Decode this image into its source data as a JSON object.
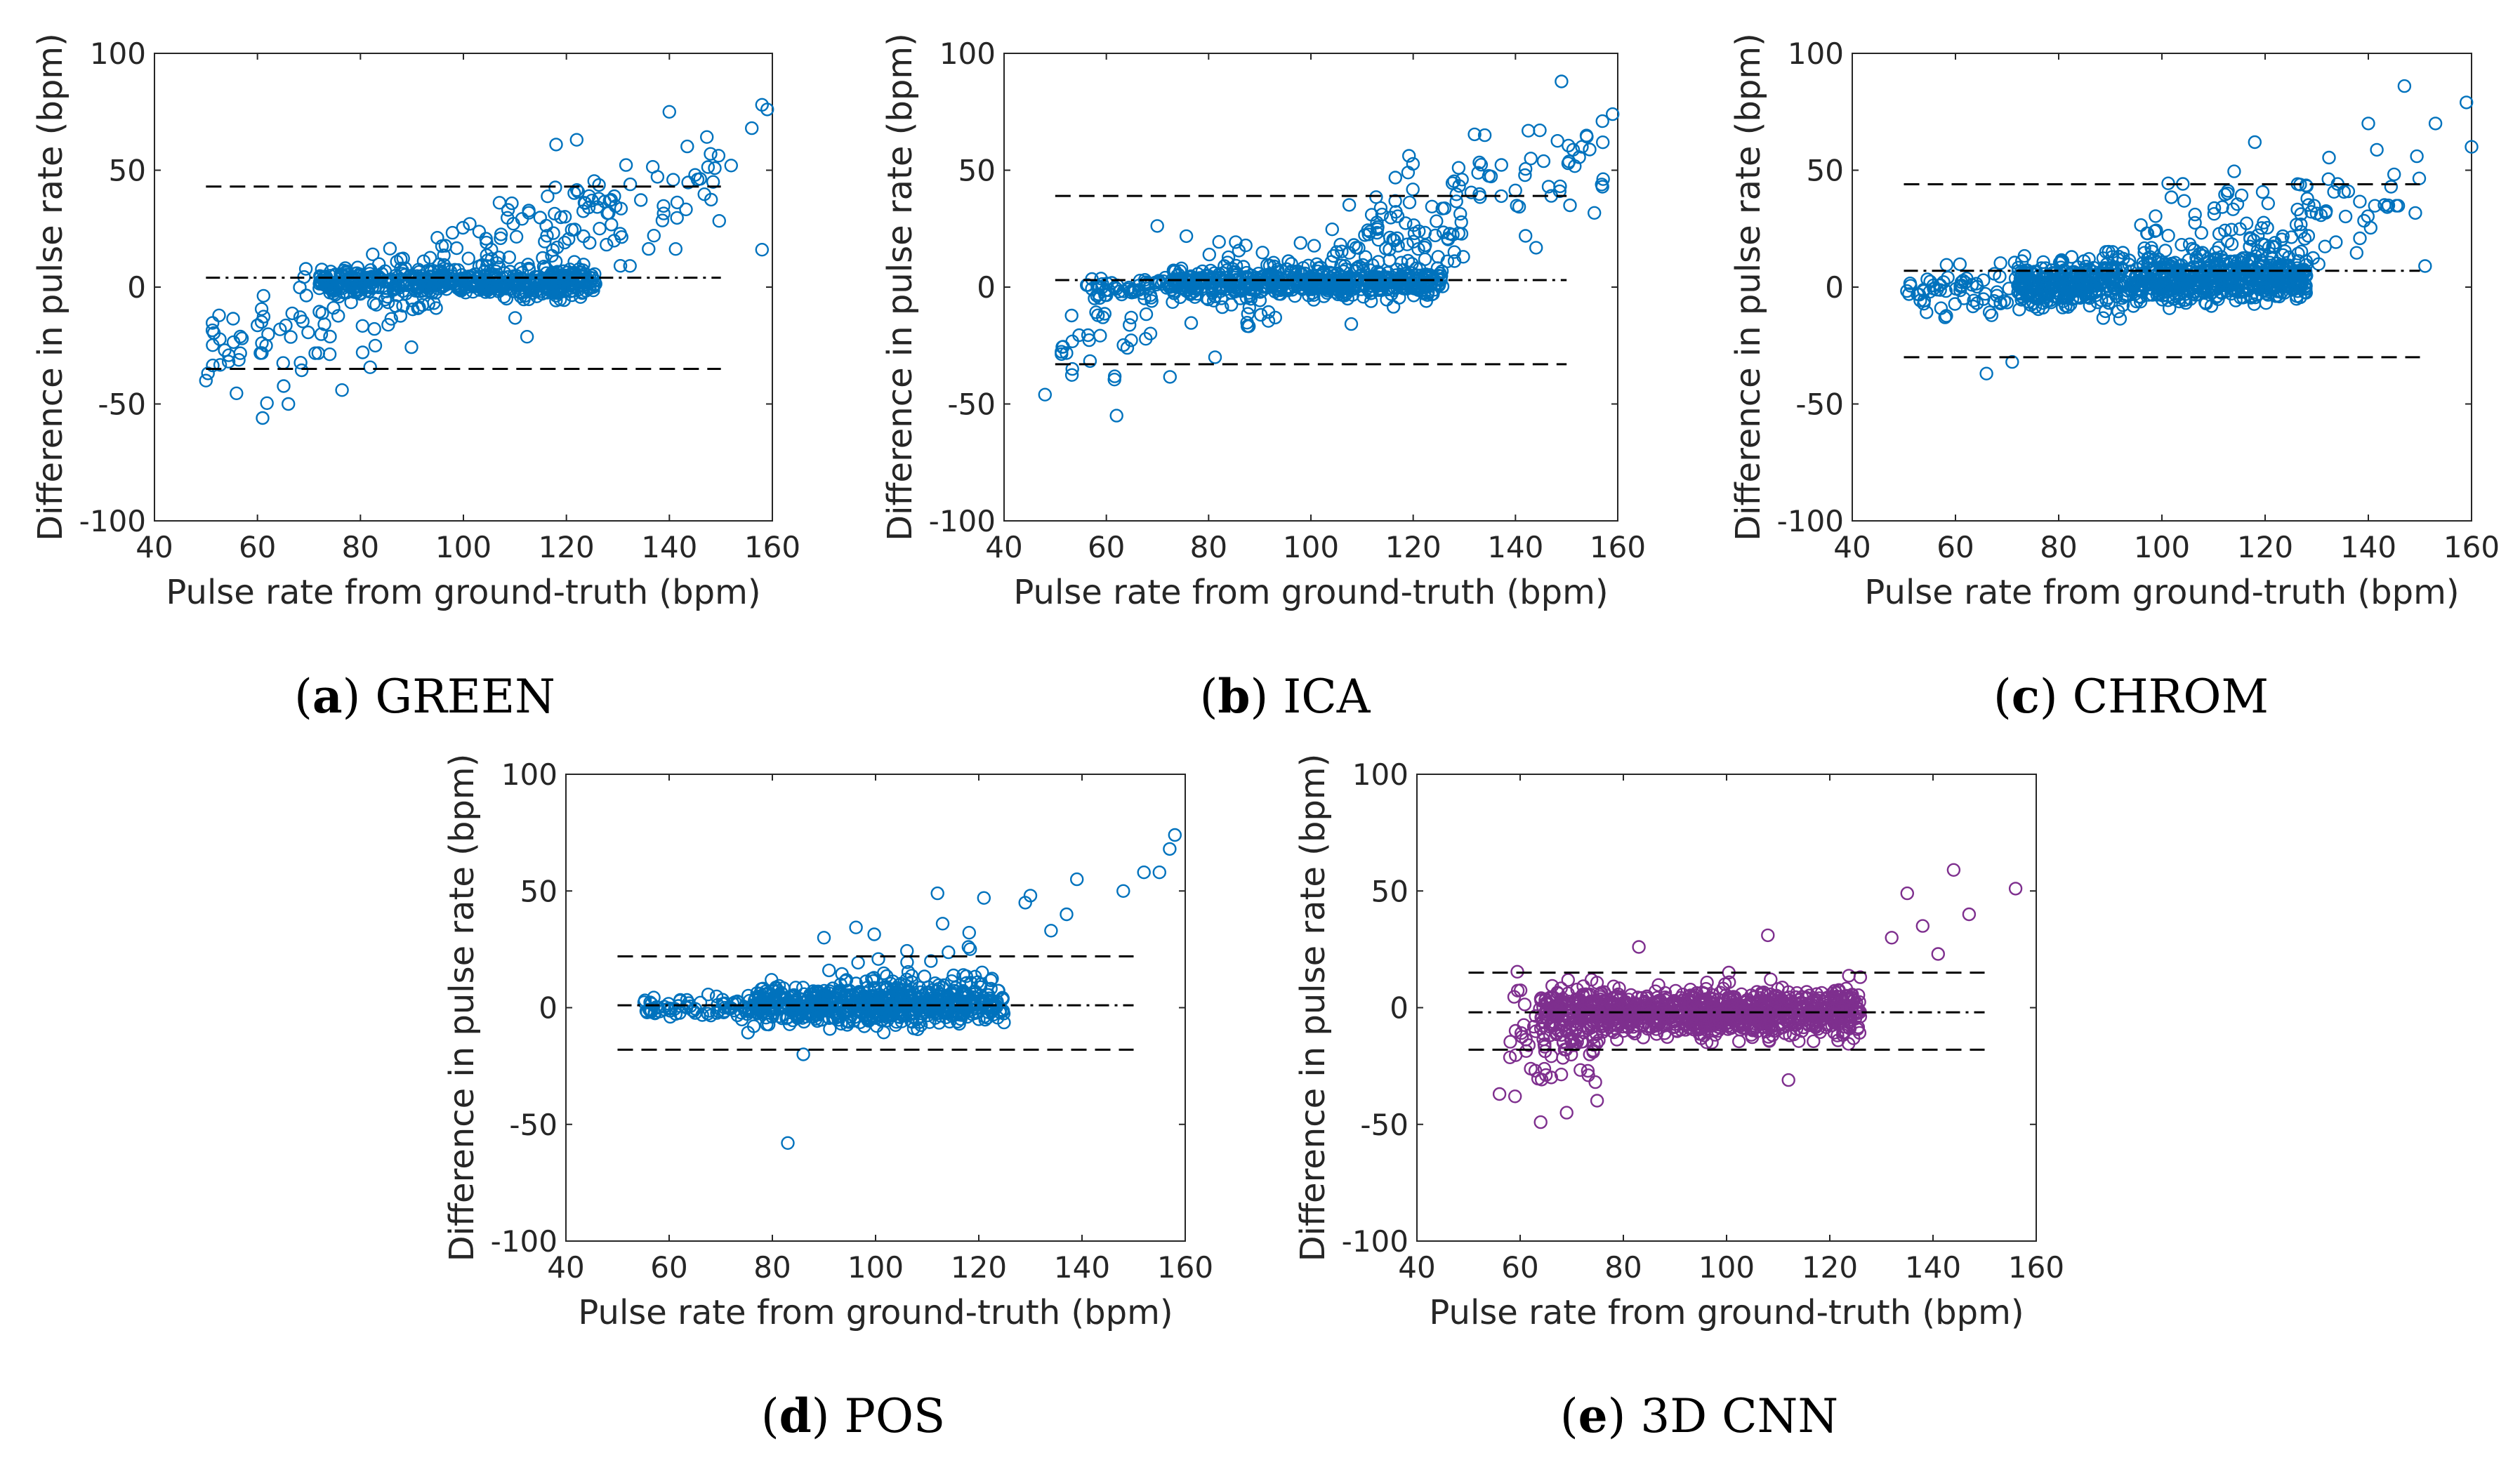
{
  "figure": {
    "marker_color_default": "#0072BD",
    "marker_color_cnn": "#7E2F8E",
    "line_color": "#000000"
  },
  "chart_data": [
    {
      "id": "a",
      "type": "scatter",
      "caption_letter": "a",
      "caption_text": " GREEN",
      "xlabel": "Pulse rate from ground-truth (bpm)",
      "ylabel": "Difference in pulse rate (bpm)",
      "xlim": [
        40,
        160
      ],
      "ylim": [
        -100,
        100
      ],
      "xticks": [
        40,
        60,
        80,
        100,
        120,
        140,
        160
      ],
      "yticks": [
        -100,
        -50,
        0,
        50,
        100
      ],
      "mean_diff": 4,
      "upper_loa": 43,
      "lower_loa": -35,
      "line_x_range": [
        50,
        150
      ],
      "marker_color": "#0072BD",
      "clusters": [
        {
          "n": 520,
          "x_range": [
            72,
            126
          ],
          "y_mean": 2,
          "y_sd": 3,
          "slope": 0
        },
        {
          "n": 170,
          "x_range": [
            50,
            130
          ],
          "y_mean": 0,
          "y_sd": 12,
          "slope": 0.8
        },
        {
          "n": 70,
          "x_range": [
            95,
            150
          ],
          "y_mean": 25,
          "y_sd": 12,
          "slope": 0.7
        }
      ],
      "outliers": [
        [
          50,
          -40
        ],
        [
          61,
          -56
        ],
        [
          66,
          -50
        ],
        [
          158,
          78
        ],
        [
          159,
          76
        ],
        [
          158,
          16
        ],
        [
          152,
          52
        ],
        [
          156,
          68
        ],
        [
          140,
          75
        ],
        [
          148,
          57
        ],
        [
          122,
          63
        ],
        [
          118,
          61
        ],
        [
          137,
          22
        ],
        [
          145,
          48
        ]
      ]
    },
    {
      "id": "b",
      "type": "scatter",
      "caption_letter": "b",
      "caption_text": " ICA",
      "xlabel": "Pulse rate from ground-truth (bpm)",
      "ylabel": "Difference in pulse rate (bpm)",
      "xlim": [
        40,
        160
      ],
      "ylim": [
        -100,
        100
      ],
      "xticks": [
        40,
        60,
        80,
        100,
        120,
        140,
        160
      ],
      "yticks": [
        -100,
        -50,
        0,
        50,
        100
      ],
      "mean_diff": 3,
      "upper_loa": 39,
      "lower_loa": -33,
      "line_x_range": [
        50,
        150
      ],
      "marker_color": "#0072BD",
      "clusters": [
        {
          "n": 520,
          "x_range": [
            72,
            126
          ],
          "y_mean": 2,
          "y_sd": 3,
          "slope": 0
        },
        {
          "n": 50,
          "x_range": [
            55,
            72
          ],
          "y_mean": 0,
          "y_sd": 2,
          "slope": 0
        },
        {
          "n": 160,
          "x_range": [
            50,
            130
          ],
          "y_mean": 0,
          "y_sd": 11,
          "slope": 0.7
        },
        {
          "n": 70,
          "x_range": [
            110,
            158
          ],
          "y_mean": 40,
          "y_sd": 12,
          "slope": 0.6
        }
      ],
      "outliers": [
        [
          62,
          -55
        ],
        [
          48,
          -46
        ],
        [
          149,
          88
        ],
        [
          159,
          74
        ],
        [
          157,
          71
        ],
        [
          153,
          60
        ],
        [
          147,
          39
        ],
        [
          143,
          55
        ],
        [
          119,
          49
        ],
        [
          134,
          65
        ]
      ]
    },
    {
      "id": "c",
      "type": "scatter",
      "caption_letter": "c",
      "caption_text": " CHROM",
      "xlabel": "Pulse rate from ground-truth (bpm)",
      "ylabel": "Difference in pulse rate (bpm)",
      "xlim": [
        40,
        160
      ],
      "ylim": [
        -100,
        100
      ],
      "xticks": [
        40,
        60,
        80,
        100,
        120,
        140,
        160
      ],
      "yticks": [
        -100,
        -50,
        0,
        50,
        100
      ],
      "mean_diff": 7,
      "upper_loa": 44,
      "lower_loa": -30,
      "line_x_range": [
        50,
        150
      ],
      "marker_color": "#0072BD",
      "clusters": [
        {
          "n": 800,
          "x_range": [
            72,
            128
          ],
          "y_mean": 3,
          "y_sd": 5,
          "slope": 0.05
        },
        {
          "n": 70,
          "x_range": [
            50,
            75
          ],
          "y_mean": -2,
          "y_sd": 5,
          "slope": 0
        },
        {
          "n": 120,
          "x_range": [
            95,
            150
          ],
          "y_mean": 30,
          "y_sd": 12,
          "slope": 0.6
        }
      ],
      "outliers": [
        [
          66,
          -37
        ],
        [
          71,
          -32
        ],
        [
          147,
          86
        ],
        [
          159,
          79
        ],
        [
          160,
          60
        ],
        [
          153,
          70
        ],
        [
          140,
          70
        ],
        [
          118,
          62
        ],
        [
          151,
          9
        ],
        [
          51,
          -3
        ],
        [
          55,
          -2
        ]
      ]
    },
    {
      "id": "d",
      "type": "scatter",
      "caption_letter": "d",
      "caption_text": " POS",
      "xlabel": "Pulse rate from ground-truth (bpm)",
      "ylabel": "Difference in pulse rate (bpm)",
      "xlim": [
        40,
        160
      ],
      "ylim": [
        -100,
        100
      ],
      "xticks": [
        40,
        60,
        80,
        100,
        120,
        140,
        160
      ],
      "yticks": [
        -100,
        -50,
        0,
        50,
        100
      ],
      "mean_diff": 1,
      "upper_loa": 22,
      "lower_loa": -18,
      "line_x_range": [
        50,
        150
      ],
      "marker_color": "#0072BD",
      "clusters": [
        {
          "n": 650,
          "x_range": [
            75,
            125
          ],
          "y_mean": 1,
          "y_sd": 4,
          "slope": 0
        },
        {
          "n": 70,
          "x_range": [
            55,
            75
          ],
          "y_mean": 0,
          "y_sd": 2,
          "slope": 0
        },
        {
          "n": 60,
          "x_range": [
            90,
            125
          ],
          "y_mean": 12,
          "y_sd": 8,
          "slope": 0
        }
      ],
      "outliers": [
        [
          83,
          -58
        ],
        [
          158,
          74
        ],
        [
          157,
          68
        ],
        [
          155,
          58
        ],
        [
          152,
          58
        ],
        [
          148,
          50
        ],
        [
          139,
          55
        ],
        [
          137,
          40
        ],
        [
          130,
          48
        ],
        [
          129,
          45
        ],
        [
          112,
          49
        ],
        [
          113,
          36
        ],
        [
          90,
          30
        ],
        [
          86,
          -20
        ],
        [
          118,
          26
        ],
        [
          121,
          47
        ],
        [
          134,
          33
        ]
      ]
    },
    {
      "id": "e",
      "type": "scatter",
      "caption_letter": "e",
      "caption_text": " 3D CNN",
      "xlabel": "Pulse rate from ground-truth (bpm)",
      "ylabel": "Difference in pulse rate (bpm)",
      "xlim": [
        40,
        160
      ],
      "ylim": [
        -100,
        100
      ],
      "xticks": [
        40,
        60,
        80,
        100,
        120,
        140,
        160
      ],
      "yticks": [
        -100,
        -50,
        0,
        50,
        100
      ],
      "mean_diff": -2,
      "upper_loa": 15,
      "lower_loa": -18,
      "line_x_range": [
        50,
        150
      ],
      "marker_color": "#7E2F8E",
      "clusters": [
        {
          "n": 1000,
          "x_range": [
            64,
            126
          ],
          "y_mean": -2,
          "y_sd": 5,
          "slope": 0
        },
        {
          "n": 80,
          "x_range": [
            58,
            75
          ],
          "y_mean": -12,
          "y_sd": 12,
          "slope": 0
        }
      ],
      "outliers": [
        [
          144,
          59
        ],
        [
          156,
          51
        ],
        [
          135,
          49
        ],
        [
          147,
          40
        ],
        [
          69,
          -45
        ],
        [
          56,
          -37
        ],
        [
          59,
          -38
        ],
        [
          112,
          -31
        ],
        [
          132,
          30
        ],
        [
          138,
          35
        ],
        [
          141,
          23
        ],
        [
          108,
          31
        ],
        [
          83,
          26
        ]
      ]
    }
  ]
}
